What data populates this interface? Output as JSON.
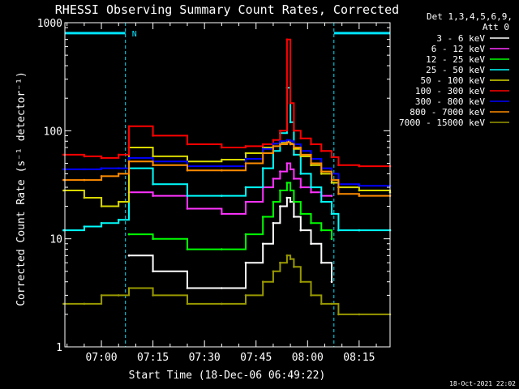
{
  "chart_data": {
    "type": "line",
    "title": "RHESSI Observing Summary Count Rates, Corrected",
    "xlabel": "Start Time (18-Dec-06 06:49:22)",
    "ylabel": "Corrected Count Rate (s⁻¹ detector⁻¹)",
    "y_scale": "log",
    "ylim": [
      1,
      1000
    ],
    "xlim": [
      "06:49:22",
      "08:24:00"
    ],
    "x_ticks": [
      "07:00",
      "07:15",
      "07:30",
      "07:45",
      "08:00",
      "08:15"
    ],
    "y_ticks": [
      "1",
      "10",
      "100",
      "1000"
    ],
    "legend_header": [
      "Det 1,3,4,5,6,9,",
      "Att 0"
    ],
    "legend_position": "right",
    "timestamp": "18-Oct-2021 22:02",
    "flag": {
      "label": "N",
      "level": 800,
      "color": "#00e5ff",
      "intervals": [
        [
          "06:49:22",
          "07:07:00"
        ],
        [
          "08:07:40",
          "08:24:00"
        ]
      ],
      "markers": [
        "07:07:00",
        "08:07:40"
      ]
    },
    "x": [
      "06:49",
      "06:55",
      "07:00",
      "07:05",
      "07:08",
      "07:15",
      "07:25",
      "07:35",
      "07:42",
      "07:47",
      "07:50",
      "07:52",
      "07:54",
      "07:55",
      "07:56",
      "07:58",
      "08:01",
      "08:04",
      "08:07",
      "08:09",
      "08:15",
      "08:24"
    ],
    "series": [
      {
        "name": "3 - 6 keV",
        "color": "#ffffff",
        "values": [
          null,
          null,
          null,
          null,
          7,
          5,
          3.5,
          3.5,
          6,
          9,
          14,
          20,
          24,
          22,
          16,
          12,
          9,
          6,
          4,
          null,
          null,
          null
        ]
      },
      {
        "name": "6 - 12 keV",
        "color": "#ff33ff",
        "values": [
          null,
          null,
          null,
          null,
          27,
          25,
          19,
          17,
          22,
          30,
          36,
          42,
          50,
          44,
          36,
          30,
          27,
          25,
          25,
          null,
          null,
          null
        ]
      },
      {
        "name": "12 - 25 keV",
        "color": "#00ff00",
        "values": [
          null,
          null,
          null,
          null,
          11,
          10,
          8,
          8,
          11,
          16,
          22,
          28,
          33,
          28,
          22,
          17,
          14,
          12,
          10,
          null,
          null,
          null
        ]
      },
      {
        "name": "25 - 50 keV",
        "color": "#00ffff",
        "values": [
          12,
          13,
          14,
          15,
          45,
          32,
          25,
          25,
          30,
          45,
          65,
          95,
          250,
          120,
          60,
          40,
          30,
          22,
          17,
          12,
          12,
          12
        ]
      },
      {
        "name": "50 - 100 keV",
        "color": "#d9d900",
        "values": [
          28,
          24,
          20,
          22,
          70,
          58,
          52,
          54,
          62,
          70,
          76,
          78,
          80,
          76,
          68,
          58,
          48,
          40,
          33,
          30,
          28,
          27
        ]
      },
      {
        "name": "100 - 300 keV",
        "color": "#ff0000",
        "values": [
          60,
          58,
          56,
          60,
          110,
          90,
          75,
          70,
          72,
          75,
          82,
          100,
          700,
          180,
          100,
          85,
          75,
          65,
          57,
          48,
          47,
          47
        ]
      },
      {
        "name": "300 - 800 keV",
        "color": "#0000ff",
        "values": [
          44,
          44,
          45,
          45,
          56,
          52,
          47,
          47,
          55,
          68,
          76,
          80,
          82,
          80,
          75,
          65,
          55,
          45,
          40,
          32,
          31,
          31
        ]
      },
      {
        "name": "800 - 7000 keV",
        "color": "#ff8c00",
        "values": [
          35,
          35,
          38,
          40,
          52,
          48,
          43,
          43,
          50,
          62,
          72,
          75,
          78,
          75,
          70,
          60,
          50,
          42,
          35,
          26,
          25,
          25
        ]
      },
      {
        "name": "7000 - 15000 keV",
        "color": "#999900",
        "values": [
          2.5,
          2.5,
          3,
          3,
          3.5,
          3,
          2.5,
          2.5,
          3,
          4,
          5,
          6,
          7,
          6.5,
          5.5,
          4,
          3,
          2.5,
          2.5,
          2,
          2,
          2
        ]
      }
    ]
  }
}
